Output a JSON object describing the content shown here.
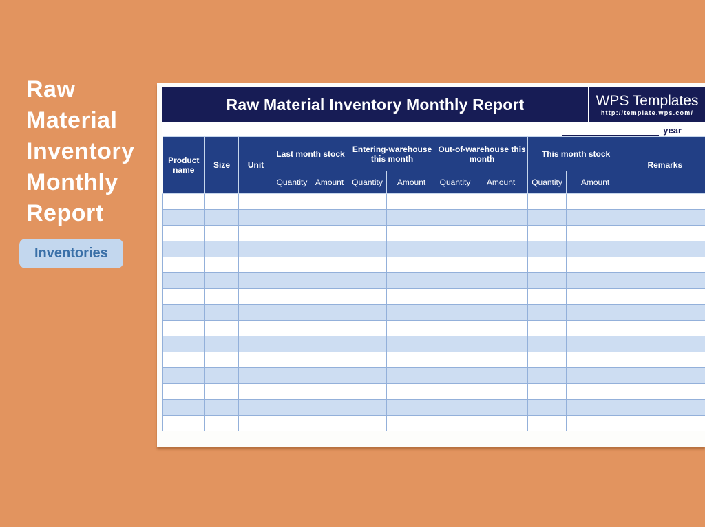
{
  "left_panel": {
    "heading_lines": [
      "Raw",
      "Material",
      "Inventory",
      "Monthly",
      "Report"
    ],
    "tag_label": "Inventories"
  },
  "sheet": {
    "title": "Raw Material Inventory Monthly Report",
    "brand": {
      "name": "WPS Templates",
      "url": "http://template.wps.com/"
    },
    "year_label": "year",
    "table": {
      "col_headers": {
        "product": "Product name",
        "size": "Size",
        "unit": "Unit",
        "remarks": "Remarks"
      },
      "groups": [
        {
          "label": "Last month stock",
          "columns": [
            "Quantity",
            "Amount"
          ]
        },
        {
          "label": "Entering-warehouse this month",
          "columns": [
            "Quantity",
            "Amount"
          ]
        },
        {
          "label": "Out-of-warehouse this month",
          "columns": [
            "Quantity",
            "Amount"
          ]
        },
        {
          "label": "This month stock",
          "columns": [
            "Quantity",
            "Amount"
          ]
        }
      ],
      "row_count": 15,
      "columns_per_row": 12
    }
  },
  "colors": {
    "background": "#e2945f",
    "title_bar": "#171c55",
    "header": "#223f85",
    "row_alt": "#cdddf2",
    "grid": "#93b0da",
    "tag_bg": "#c3d7ee",
    "tag_text": "#3a70a8"
  }
}
